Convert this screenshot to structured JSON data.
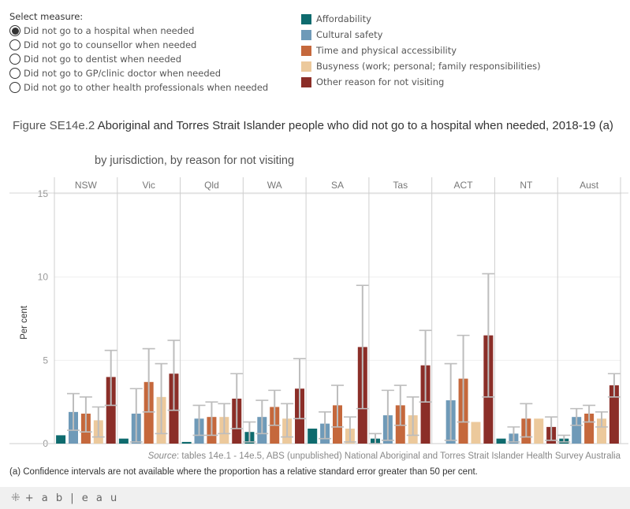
{
  "selector": {
    "title": "Select measure:",
    "options": [
      {
        "label": "Did not go to a hospital when needed",
        "selected": true
      },
      {
        "label": "Did not go to counsellor when needed",
        "selected": false
      },
      {
        "label": "Did not go to dentist when needed",
        "selected": false
      },
      {
        "label": "Did not go to GP/clinic doctor when needed",
        "selected": false
      },
      {
        "label": "Did not go to other health professionals when needed",
        "selected": false
      }
    ]
  },
  "legend": [
    {
      "label": "Affordability",
      "color": "#0e6b6e"
    },
    {
      "label": "Cultural safety",
      "color": "#6f9ab8"
    },
    {
      "label": "Time and physical accessibility",
      "color": "#c5683c"
    },
    {
      "label": "Busyness (work; personal; family responsibilities)",
      "color": "#ecc99c"
    },
    {
      "label": "Other reason for not visiting",
      "color": "#8b2e28"
    }
  ],
  "figure": {
    "lead": "Figure SE14e.2 ",
    "title": "Aboriginal and Torres Strait Islander people who did not go to a hospital when needed, 2018-19 (a)",
    "subtitle": "by jurisdiction, by reason for not visiting"
  },
  "chart_data": {
    "type": "bar",
    "title": "Aboriginal and Torres Strait Islander people who did not go to a hospital when needed, 2018-19 (a)",
    "xlabel": "",
    "ylabel": "Per cent",
    "ylim": [
      0,
      15
    ],
    "yticks": [
      0,
      5,
      10,
      15
    ],
    "grid": true,
    "categories": [
      "NSW",
      "Vic",
      "Qld",
      "WA",
      "SA",
      "Tas",
      "ACT",
      "NT",
      "Aust"
    ],
    "series": [
      {
        "name": "Affordability",
        "color": "#0e6b6e",
        "values": [
          0.5,
          0.3,
          0.1,
          0.7,
          0.9,
          0.3,
          null,
          0.3,
          0.3
        ],
        "ci_low": [
          null,
          null,
          null,
          0.1,
          null,
          0.0,
          null,
          null,
          0.1
        ],
        "ci_high": [
          null,
          null,
          null,
          1.3,
          null,
          0.6,
          null,
          null,
          0.5
        ]
      },
      {
        "name": "Cultural safety",
        "color": "#6f9ab8",
        "values": [
          1.9,
          1.8,
          1.5,
          1.6,
          1.2,
          1.7,
          2.6,
          0.6,
          1.6
        ],
        "ci_low": [
          0.8,
          0.1,
          0.5,
          0.6,
          0.3,
          0.2,
          0.2,
          0.1,
          1.1
        ],
        "ci_high": [
          3.0,
          3.3,
          2.3,
          2.6,
          1.9,
          3.2,
          4.8,
          1.0,
          2.1
        ]
      },
      {
        "name": "Time and physical accessibility",
        "color": "#c5683c",
        "values": [
          1.8,
          3.7,
          1.6,
          2.2,
          2.3,
          2.3,
          3.9,
          1.5,
          1.8
        ],
        "ci_low": [
          0.7,
          1.9,
          0.5,
          1.1,
          1.0,
          1.1,
          1.3,
          0.4,
          1.3
        ],
        "ci_high": [
          2.8,
          5.7,
          2.5,
          3.2,
          3.5,
          3.5,
          6.5,
          2.4,
          2.3
        ]
      },
      {
        "name": "Busyness (work; personal; family responsibilities)",
        "color": "#ecc99c",
        "values": [
          1.4,
          2.8,
          1.6,
          1.5,
          0.9,
          1.7,
          1.3,
          1.5,
          1.5
        ],
        "ci_low": [
          0.4,
          0.6,
          0.6,
          0.4,
          0.1,
          0.5,
          null,
          null,
          1.0
        ],
        "ci_high": [
          2.2,
          4.8,
          2.4,
          2.4,
          1.6,
          2.8,
          null,
          null,
          1.9
        ]
      },
      {
        "name": "Other reason for not visiting",
        "color": "#8b2e28",
        "values": [
          4.0,
          4.2,
          2.7,
          3.3,
          5.8,
          4.7,
          6.5,
          1.0,
          3.5
        ],
        "ci_low": [
          2.3,
          2.0,
          0.9,
          1.5,
          2.1,
          2.5,
          2.8,
          0.2,
          2.8
        ],
        "ci_high": [
          5.6,
          6.2,
          4.2,
          5.1,
          9.5,
          6.8,
          10.2,
          1.6,
          4.2
        ]
      }
    ]
  },
  "source": {
    "label": "Source",
    "text": ": tables 14e.1 - 14e.5, ABS (unpublished) National Aboriginal and Torres Strait Islander Health Survey Australia"
  },
  "note": "(a) Confidence intervals are not available where the proportion has a relative standard error greater than 50 per cent.",
  "footer": {
    "logo_text": "+ a b | e a u"
  }
}
